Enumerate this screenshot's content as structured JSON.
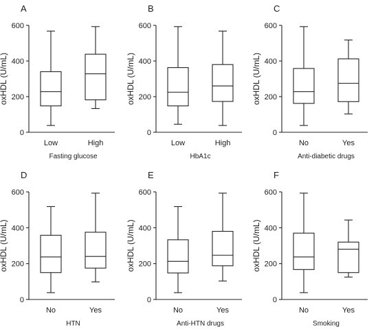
{
  "chart_data": [
    {
      "panel": "A",
      "type": "boxplot",
      "xlabel": "Fasting glucose",
      "ylabel": "oxHDL (U/mL)",
      "ylim": [
        0,
        600
      ],
      "yticks": [
        "0",
        "200",
        "400",
        "600"
      ],
      "categories": [
        "Low",
        "High"
      ],
      "boxes": [
        {
          "min": 38,
          "q1": 148,
          "median": 228,
          "q3": 340,
          "max": 568
        },
        {
          "min": 133,
          "q1": 182,
          "median": 328,
          "q3": 438,
          "max": 593
        }
      ]
    },
    {
      "panel": "B",
      "type": "boxplot",
      "xlabel": "HbA1c",
      "ylabel": "oxHDL (U/mL)",
      "ylim": [
        0,
        600
      ],
      "yticks": [
        "0",
        "200",
        "400",
        "600"
      ],
      "categories": [
        "Low",
        "High"
      ],
      "boxes": [
        {
          "min": 45,
          "q1": 148,
          "median": 225,
          "q3": 363,
          "max": 593
        },
        {
          "min": 38,
          "q1": 173,
          "median": 260,
          "q3": 380,
          "max": 568
        }
      ]
    },
    {
      "panel": "C",
      "type": "boxplot",
      "xlabel": "Anti-diabetic drugs",
      "ylabel": "oxHDL (U/mL)",
      "ylim": [
        0,
        600
      ],
      "yticks": [
        "0",
        "200",
        "400",
        "600"
      ],
      "categories": [
        "No",
        "Yes"
      ],
      "boxes": [
        {
          "min": 38,
          "q1": 162,
          "median": 228,
          "q3": 358,
          "max": 593
        },
        {
          "min": 103,
          "q1": 172,
          "median": 275,
          "q3": 412,
          "max": 518
        }
      ]
    },
    {
      "panel": "D",
      "type": "boxplot",
      "xlabel": "HTN",
      "ylabel": "oxHDL (U/mL)",
      "ylim": [
        0,
        600
      ],
      "yticks": [
        "0",
        "200",
        "400",
        "600"
      ],
      "categories": [
        "No",
        "Yes"
      ],
      "boxes": [
        {
          "min": 38,
          "q1": 150,
          "median": 237,
          "q3": 358,
          "max": 518
        },
        {
          "min": 98,
          "q1": 175,
          "median": 240,
          "q3": 375,
          "max": 593
        }
      ]
    },
    {
      "panel": "E",
      "type": "boxplot",
      "xlabel": "Anti-HTN drugs",
      "ylabel": "oxHDL (U/mL)",
      "ylim": [
        0,
        600
      ],
      "yticks": [
        "0",
        "200",
        "400",
        "600"
      ],
      "categories": [
        "No",
        "Yes"
      ],
      "boxes": [
        {
          "min": 38,
          "q1": 148,
          "median": 213,
          "q3": 333,
          "max": 518
        },
        {
          "min": 103,
          "q1": 188,
          "median": 247,
          "q3": 380,
          "max": 593
        }
      ]
    },
    {
      "panel": "F",
      "type": "boxplot",
      "xlabel": "Smoking",
      "ylabel": "oxHDL (U/mL)",
      "ylim": [
        0,
        600
      ],
      "yticks": [
        "0",
        "200",
        "400",
        "600"
      ],
      "categories": [
        "No",
        "Yes"
      ],
      "boxes": [
        {
          "min": 38,
          "q1": 167,
          "median": 237,
          "q3": 370,
          "max": 593
        },
        {
          "min": 125,
          "q1": 150,
          "median": 280,
          "q3": 320,
          "max": 443
        }
      ]
    }
  ]
}
